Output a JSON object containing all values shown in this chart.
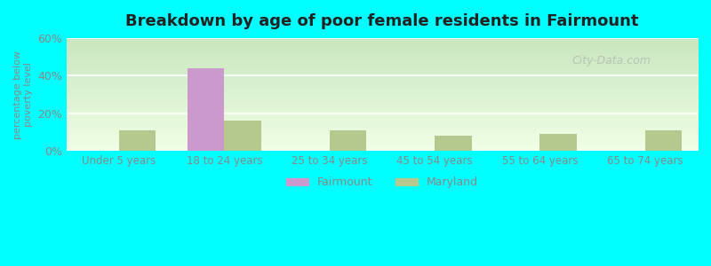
{
  "title": "Breakdown by age of poor female residents in Fairmount",
  "ylabel": "percentage below\npoverty level",
  "categories": [
    "Under 5 years",
    "18 to 24 years",
    "25 to 34 years",
    "45 to 54 years",
    "55 to 64 years",
    "65 to 74 years"
  ],
  "fairmount_values": [
    0,
    44,
    0,
    0,
    0,
    0
  ],
  "maryland_values": [
    11,
    16,
    11,
    8,
    9,
    11
  ],
  "fairmount_color": "#cc99cc",
  "maryland_color": "#b5c98e",
  "ylim": [
    0,
    60
  ],
  "yticks": [
    0,
    20,
    40,
    60
  ],
  "ytick_labels": [
    "0%",
    "20%",
    "40%",
    "60%"
  ],
  "outer_bg": "#00ffff",
  "bar_width": 0.35,
  "legend_labels": [
    "Fairmount",
    "Maryland"
  ],
  "watermark": "City-Data.com",
  "grid_color": "#ffffff",
  "tick_label_color": "#888888",
  "title_color": "#222222",
  "bg_top_color": "#e8f5e0",
  "bg_bottom_color": "#f8fff0"
}
